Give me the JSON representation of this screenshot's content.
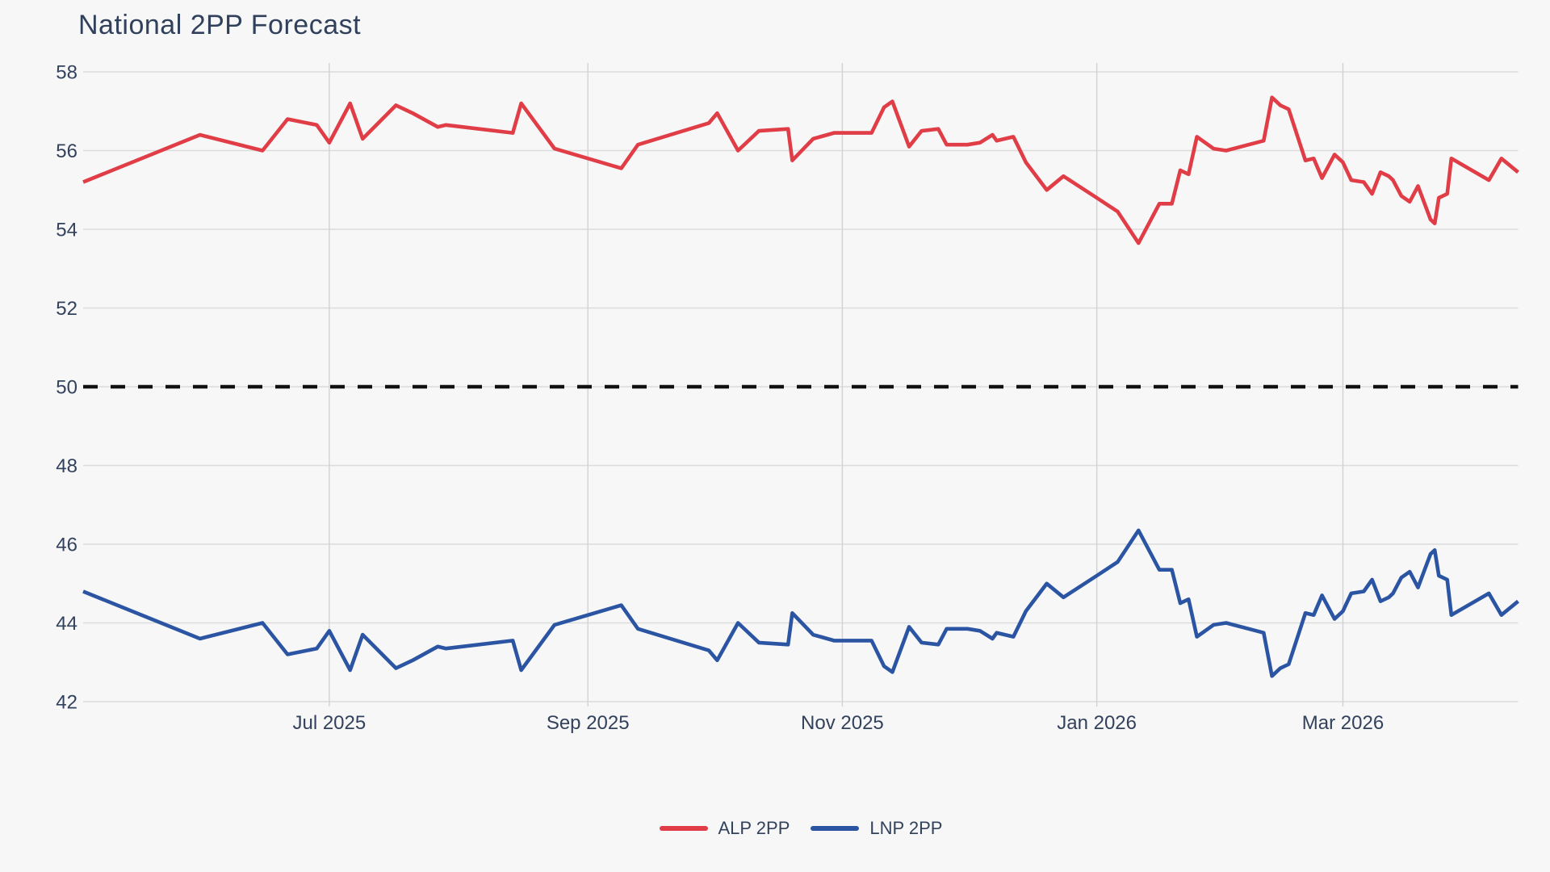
{
  "chart_data": {
    "type": "line",
    "title": "National 2PP Forecast",
    "x_axis": {
      "type": "time",
      "start": "2025-05-03",
      "end": "2026-04-12",
      "ticks": [
        {
          "date": "2025-07-01",
          "label": "Jul 2025"
        },
        {
          "date": "2025-09-01",
          "label": "Sep 2025"
        },
        {
          "date": "2025-11-01",
          "label": "Nov 2025"
        },
        {
          "date": "2026-01-01",
          "label": "Jan 2026"
        },
        {
          "date": "2026-03-01",
          "label": "Mar 2026"
        }
      ]
    },
    "y_axis": {
      "min": 42,
      "max": 58,
      "ticks": [
        42,
        44,
        46,
        48,
        50,
        52,
        54,
        56,
        58
      ],
      "grid": true
    },
    "reference_line": {
      "value": 50,
      "style": "dashed",
      "color": "#111111"
    },
    "legend_position": "bottom-center",
    "colors": {
      "background": "#f7f7f8",
      "grid_horizontal": "#dcdcdc",
      "grid_vertical": "#d2d2d2",
      "text": "#33425c",
      "title": "#31415c"
    },
    "dates": [
      "2025-05-03",
      "2025-05-31",
      "2025-06-15",
      "2025-06-21",
      "2025-06-28",
      "2025-07-01",
      "2025-07-06",
      "2025-07-09",
      "2025-07-17",
      "2025-07-21",
      "2025-07-27",
      "2025-07-29",
      "2025-08-14",
      "2025-08-16",
      "2025-08-24",
      "2025-09-09",
      "2025-09-13",
      "2025-09-30",
      "2025-10-02",
      "2025-10-07",
      "2025-10-12",
      "2025-10-19",
      "2025-10-20",
      "2025-10-25",
      "2025-10-30",
      "2025-11-08",
      "2025-11-11",
      "2025-11-13",
      "2025-11-17",
      "2025-11-20",
      "2025-11-24",
      "2025-11-26",
      "2025-12-01",
      "2025-12-04",
      "2025-12-07",
      "2025-12-08",
      "2025-12-12",
      "2025-12-15",
      "2025-12-20",
      "2025-12-24",
      "2026-01-01",
      "2026-01-06",
      "2026-01-11",
      "2026-01-16",
      "2026-01-19",
      "2026-01-21",
      "2026-01-23",
      "2026-01-25",
      "2026-01-29",
      "2026-02-01",
      "2026-02-10",
      "2026-02-12",
      "2026-02-14",
      "2026-02-16",
      "2026-02-20",
      "2026-02-22",
      "2026-02-24",
      "2026-02-27",
      "2026-03-01",
      "2026-03-03",
      "2026-03-06",
      "2026-03-08",
      "2026-03-10",
      "2026-03-12",
      "2026-03-13",
      "2026-03-15",
      "2026-03-17",
      "2026-03-19",
      "2026-03-22",
      "2026-03-23",
      "2026-03-24",
      "2026-03-26",
      "2026-03-27",
      "2026-04-05",
      "2026-04-08",
      "2026-04-12"
    ],
    "series": [
      {
        "name": "ALP 2PP",
        "color": "#e03d47",
        "values": [
          55.2,
          56.4,
          56.0,
          56.8,
          56.65,
          56.2,
          57.2,
          56.3,
          57.15,
          56.95,
          56.6,
          56.65,
          56.45,
          57.2,
          56.05,
          55.55,
          56.15,
          56.7,
          56.95,
          56.0,
          56.5,
          56.55,
          55.75,
          56.3,
          56.45,
          56.45,
          57.1,
          57.25,
          56.1,
          56.5,
          56.55,
          56.15,
          56.15,
          56.2,
          56.4,
          56.25,
          56.35,
          55.7,
          55.0,
          55.35,
          54.8,
          54.45,
          53.65,
          54.65,
          54.65,
          55.5,
          55.4,
          56.35,
          56.05,
          56.0,
          56.25,
          57.35,
          57.15,
          57.05,
          55.75,
          55.8,
          55.3,
          55.9,
          55.7,
          55.25,
          55.2,
          54.9,
          55.45,
          55.35,
          55.25,
          54.85,
          54.7,
          55.1,
          54.25,
          54.15,
          54.8,
          54.9,
          55.8,
          55.25,
          55.8,
          55.45
        ]
      },
      {
        "name": "LNP 2PP",
        "color": "#2b55a3",
        "values": [
          44.8,
          43.6,
          44.0,
          43.2,
          43.35,
          43.8,
          42.8,
          43.7,
          42.85,
          43.05,
          43.4,
          43.35,
          43.55,
          42.8,
          43.95,
          44.45,
          43.85,
          43.3,
          43.05,
          44.0,
          43.5,
          43.45,
          44.25,
          43.7,
          43.55,
          43.55,
          42.9,
          42.75,
          43.9,
          43.5,
          43.45,
          43.85,
          43.85,
          43.8,
          43.6,
          43.75,
          43.65,
          44.3,
          45.0,
          44.65,
          45.2,
          45.55,
          46.35,
          45.35,
          45.35,
          44.5,
          44.6,
          43.65,
          43.95,
          44.0,
          43.75,
          42.65,
          42.85,
          42.95,
          44.25,
          44.2,
          44.7,
          44.1,
          44.3,
          44.75,
          44.8,
          45.1,
          44.55,
          44.65,
          44.75,
          45.15,
          45.3,
          44.9,
          45.75,
          45.85,
          45.2,
          45.1,
          44.2,
          44.75,
          44.2,
          44.55
        ]
      }
    ]
  }
}
